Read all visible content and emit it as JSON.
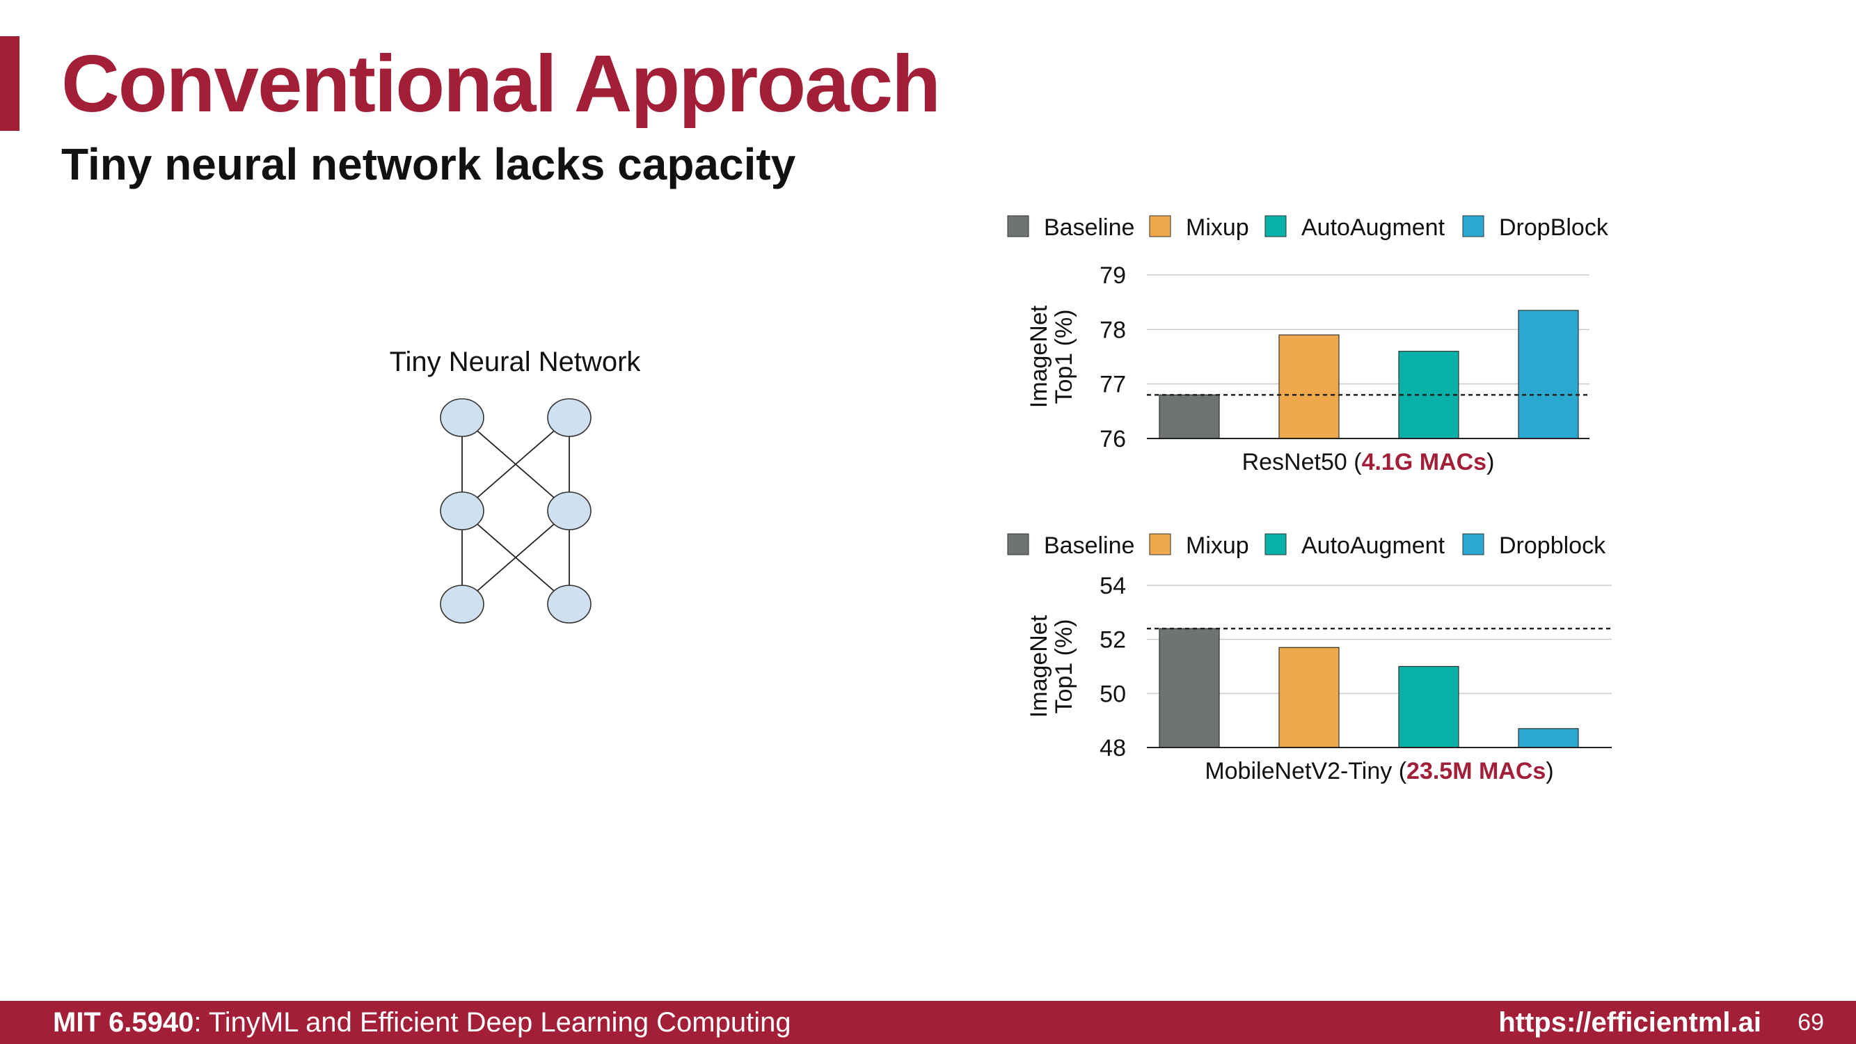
{
  "slide": {
    "title": "Conventional Approach",
    "subtitle": "Tiny neural network lacks capacity"
  },
  "diagram": {
    "title": "Tiny Neural Network",
    "node_fill": "#cfe0f1",
    "node_stroke": "#333333"
  },
  "chart_data": [
    {
      "type": "bar",
      "categories": [
        "Baseline",
        "Mixup",
        "AutoAugment",
        "DropBlock"
      ],
      "values": [
        76.8,
        77.9,
        77.6,
        78.35
      ],
      "colors": [
        "#6e7571",
        "#f0a84c",
        "#08b0a8",
        "#2aa8d0"
      ],
      "baseline_reference": 76.8,
      "ylabel_lines": [
        "ImageNet",
        "Top1 (%)"
      ],
      "xlabel_prefix": "ResNet50 (",
      "xlabel_highlight": "4.1G MACs",
      "xlabel_suffix": ")",
      "ylim": [
        76,
        79
      ],
      "yticks": [
        "76",
        "77",
        "78",
        "79"
      ],
      "legend": [
        "Baseline",
        "Mixup",
        "AutoAugment",
        "DropBlock"
      ],
      "legend_position": "top",
      "grid": true
    },
    {
      "type": "bar",
      "categories": [
        "Baseline",
        "Mixup",
        "AutoAugment",
        "Dropblock"
      ],
      "values": [
        52.4,
        51.7,
        51.0,
        48.7
      ],
      "colors": [
        "#6e7571",
        "#f0a84c",
        "#08b0a8",
        "#2aa8d0"
      ],
      "baseline_reference": 52.4,
      "ylabel_lines": [
        "ImageNet",
        "Top1 (%)"
      ],
      "xlabel_prefix": "MobileNetV2-Tiny (",
      "xlabel_highlight": "23.5M MACs",
      "xlabel_suffix": ")",
      "ylim": [
        48,
        54
      ],
      "yticks": [
        "48",
        "50",
        "52",
        "54"
      ],
      "legend": [
        "Baseline",
        "Mixup",
        "AutoAugment",
        "Dropblock"
      ],
      "legend_position": "top",
      "grid": true
    }
  ],
  "footer": {
    "course_code": "MIT 6.5940",
    "course_name": ": TinyML and Efficient Deep Learning Computing",
    "url": "https://efficientml.ai",
    "page_number": "69"
  },
  "colors": {
    "accent": "#a31f37",
    "highlight_text": "#a31f37"
  }
}
